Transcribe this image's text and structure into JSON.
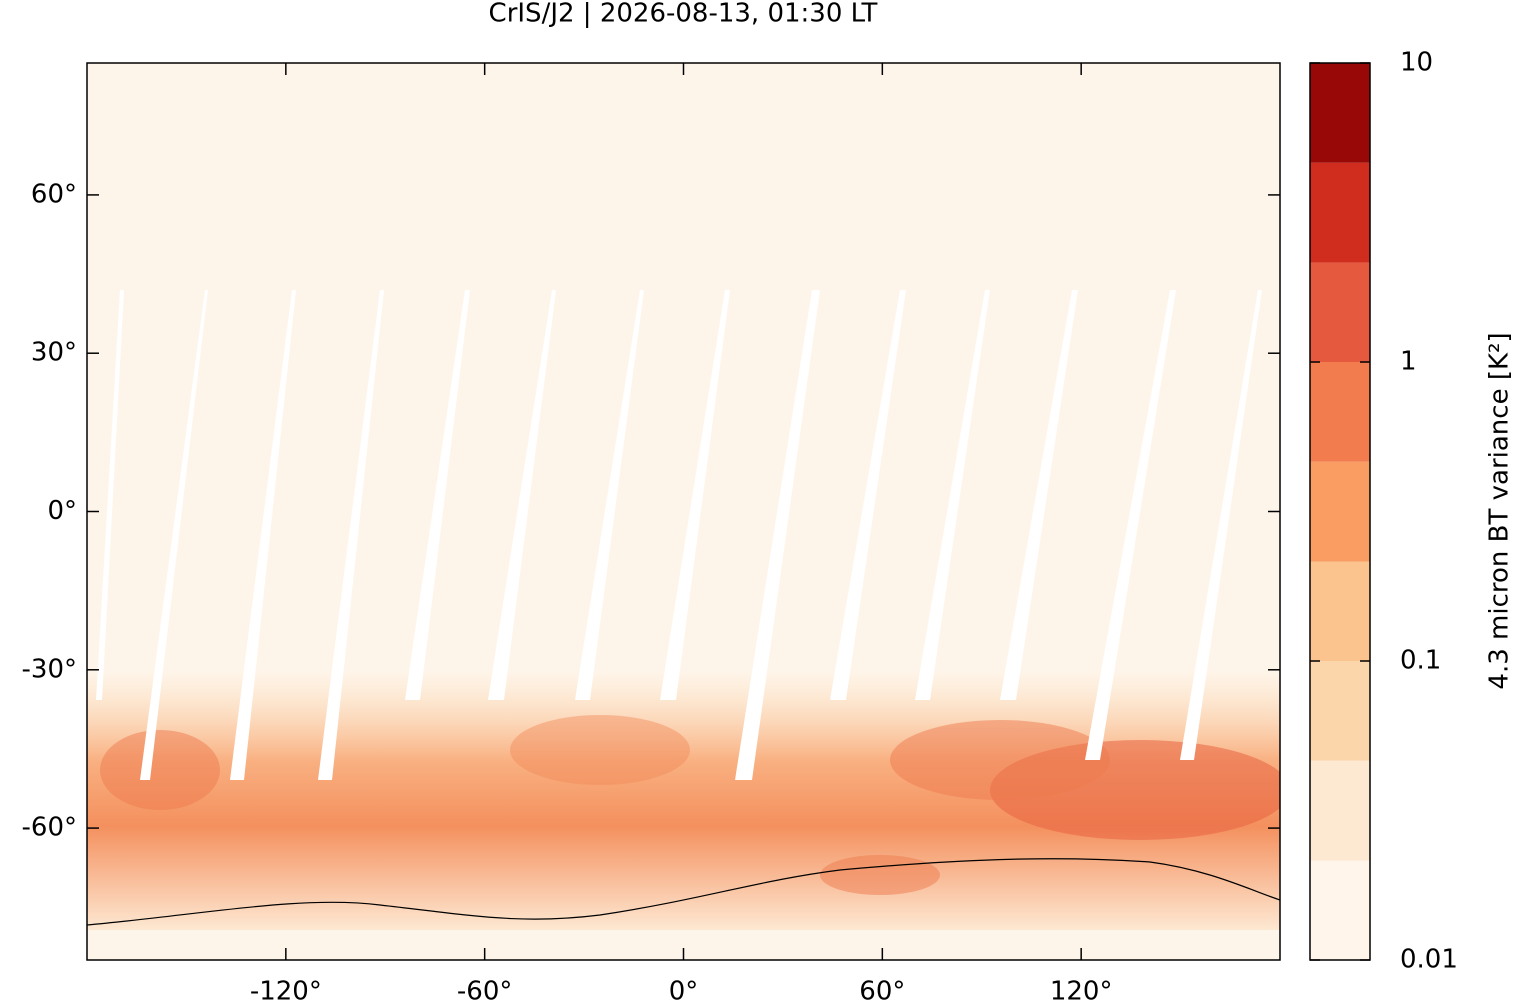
{
  "chart_data": {
    "type": "map",
    "title": "CrIS/J2 | 2026-08-13, 01:30 LT",
    "xlim": [
      -180,
      180
    ],
    "ylim": [
      -85,
      85
    ],
    "xticks": [
      {
        "value": -120,
        "label": "-120°"
      },
      {
        "value": -60,
        "label": "-60°"
      },
      {
        "value": 0,
        "label": "0°"
      },
      {
        "value": 60,
        "label": "60°"
      },
      {
        "value": 120,
        "label": "120°"
      }
    ],
    "yticks": [
      {
        "value": 60,
        "label": "60°"
      },
      {
        "value": 30,
        "label": "30°"
      },
      {
        "value": 0,
        "label": "0°"
      },
      {
        "value": -30,
        "label": "-30°"
      },
      {
        "value": -60,
        "label": "-60°"
      }
    ],
    "colorbar": {
      "label": "4.3 micron BT variance [K²]",
      "log": true,
      "lim": [
        0.01,
        10
      ],
      "ticks": [
        0.01,
        0.1,
        1,
        10
      ],
      "levels": [
        0.01,
        0.0215,
        0.0464,
        0.1,
        0.215,
        0.464,
        1,
        2.15,
        4.64,
        10
      ],
      "colors": [
        "#fff5eb",
        "#fde8d2",
        "#fbd6ab",
        "#fbc48e",
        "#f99d63",
        "#f27c4d",
        "#e55a3f",
        "#d12d1f",
        "#980806"
      ]
    }
  }
}
